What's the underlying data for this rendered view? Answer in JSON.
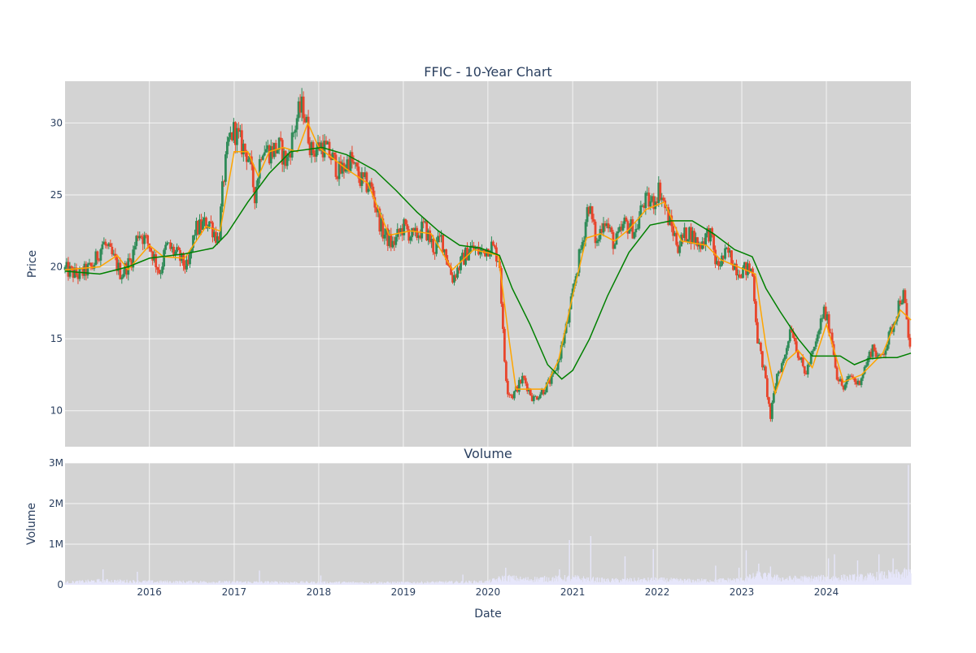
{
  "chart_data": [
    {
      "type": "candlestick",
      "title": "FFIC - 10-Year Chart",
      "xlabel": "",
      "ylabel": "Price",
      "ylim": [
        7.5,
        32.9
      ],
      "yticks": [
        10,
        15,
        20,
        25,
        30
      ],
      "grid": true,
      "background": "#d3d3d3",
      "colors": {
        "increasing": "#2e8b57",
        "decreasing": "#e8452c",
        "ma_short": "#ffa500",
        "ma_long": "#008000"
      },
      "price_path": [
        [
          "2015-01-02",
          19.8
        ],
        [
          "2015-03-01",
          19.4
        ],
        [
          "2015-05-01",
          20.0
        ],
        [
          "2015-06-15",
          21.7
        ],
        [
          "2015-08-01",
          20.5
        ],
        [
          "2015-09-01",
          19.5
        ],
        [
          "2015-10-15",
          20.5
        ],
        [
          "2015-11-15",
          22.5
        ],
        [
          "2016-01-01",
          21.5
        ],
        [
          "2016-02-15",
          19.6
        ],
        [
          "2016-03-15",
          21.5
        ],
        [
          "2016-05-01",
          20.8
        ],
        [
          "2016-06-15",
          19.8
        ],
        [
          "2016-07-15",
          22.5
        ],
        [
          "2016-09-15",
          23.2
        ],
        [
          "2016-10-25",
          21.8
        ],
        [
          "2016-11-15",
          26.0
        ],
        [
          "2016-12-10",
          28.8
        ],
        [
          "2017-01-01",
          29.5
        ],
        [
          "2017-02-01",
          28.5
        ],
        [
          "2017-03-01",
          27.8
        ],
        [
          "2017-04-01",
          25.0
        ],
        [
          "2017-05-01",
          28.5
        ],
        [
          "2017-06-01",
          28.0
        ],
        [
          "2017-07-15",
          28.3
        ],
        [
          "2017-08-15",
          27.2
        ],
        [
          "2017-10-01",
          30.5
        ],
        [
          "2017-10-25",
          31.2
        ],
        [
          "2017-12-01",
          28.0
        ],
        [
          "2018-01-15",
          28.5
        ],
        [
          "2018-03-01",
          27.5
        ],
        [
          "2018-04-01",
          26.5
        ],
        [
          "2018-05-15",
          27.5
        ],
        [
          "2018-07-01",
          26.0
        ],
        [
          "2018-08-15",
          25.5
        ],
        [
          "2018-10-01",
          22.5
        ],
        [
          "2018-11-15",
          21.5
        ],
        [
          "2019-01-01",
          22.8
        ],
        [
          "2019-02-15",
          22.0
        ],
        [
          "2019-04-01",
          22.8
        ],
        [
          "2019-05-15",
          21.2
        ],
        [
          "2019-06-15",
          22.0
        ],
        [
          "2019-08-01",
          19.2
        ],
        [
          "2019-09-15",
          20.5
        ],
        [
          "2019-10-15",
          21.3
        ],
        [
          "2019-12-01",
          21.0
        ],
        [
          "2020-01-15",
          21.5
        ],
        [
          "2020-02-20",
          20.5
        ],
        [
          "2020-03-10",
          14.0
        ],
        [
          "2020-03-25",
          11.5
        ],
        [
          "2020-04-15",
          11.0
        ],
        [
          "2020-06-01",
          12.3
        ],
        [
          "2020-07-15",
          10.8
        ],
        [
          "2020-09-01",
          11.5
        ],
        [
          "2020-10-15",
          12.5
        ],
        [
          "2020-11-15",
          14.5
        ],
        [
          "2020-12-15",
          16.5
        ],
        [
          "2021-01-15",
          19.5
        ],
        [
          "2021-02-15",
          22.0
        ],
        [
          "2021-03-10",
          24.5
        ],
        [
          "2021-04-15",
          21.5
        ],
        [
          "2021-05-15",
          23.5
        ],
        [
          "2021-07-01",
          21.5
        ],
        [
          "2021-08-15",
          23.0
        ],
        [
          "2021-10-01",
          22.5
        ],
        [
          "2021-11-01",
          24.5
        ],
        [
          "2021-12-15",
          24.5
        ],
        [
          "2022-01-10",
          25.5
        ],
        [
          "2022-02-15",
          23.5
        ],
        [
          "2022-04-01",
          21.5
        ],
        [
          "2022-05-15",
          22.5
        ],
        [
          "2022-07-01",
          21.5
        ],
        [
          "2022-08-15",
          22.5
        ],
        [
          "2022-09-15",
          20.0
        ],
        [
          "2022-11-01",
          21.0
        ],
        [
          "2022-12-15",
          19.8
        ],
        [
          "2023-02-15",
          19.8
        ],
        [
          "2023-03-10",
          15.0
        ],
        [
          "2023-04-10",
          12.5
        ],
        [
          "2023-05-05",
          9.5
        ],
        [
          "2023-06-01",
          12.5
        ],
        [
          "2023-07-01",
          13.5
        ],
        [
          "2023-08-01",
          16.0
        ],
        [
          "2023-09-01",
          14.0
        ],
        [
          "2023-10-01",
          12.5
        ],
        [
          "2023-11-15",
          14.5
        ],
        [
          "2023-12-20",
          17.0
        ],
        [
          "2024-01-20",
          15.5
        ],
        [
          "2024-02-15",
          12.5
        ],
        [
          "2024-03-15",
          11.5
        ],
        [
          "2024-04-15",
          12.5
        ],
        [
          "2024-05-15",
          11.8
        ],
        [
          "2024-06-15",
          13.0
        ],
        [
          "2024-07-20",
          14.5
        ],
        [
          "2024-08-15",
          13.5
        ],
        [
          "2024-09-15",
          14.5
        ],
        [
          "2024-10-15",
          16.0
        ],
        [
          "2024-11-15",
          17.8
        ],
        [
          "2024-12-01",
          18.0
        ],
        [
          "2024-12-20",
          15.0
        ],
        [
          "2024-12-31",
          14.3
        ]
      ],
      "ma_short": [
        [
          "2015-01-02",
          19.8
        ],
        [
          "2015-06-01",
          20.0
        ],
        [
          "2015-08-15",
          20.8
        ],
        [
          "2015-10-01",
          19.8
        ],
        [
          "2016-01-01",
          21.5
        ],
        [
          "2016-03-01",
          20.7
        ],
        [
          "2016-06-01",
          20.6
        ],
        [
          "2016-09-01",
          22.8
        ],
        [
          "2016-11-01",
          22.5
        ],
        [
          "2017-01-01",
          28.0
        ],
        [
          "2017-03-01",
          28.0
        ],
        [
          "2017-04-15",
          26.3
        ],
        [
          "2017-06-01",
          28.0
        ],
        [
          "2017-08-01",
          28.3
        ],
        [
          "2017-10-01",
          28.0
        ],
        [
          "2017-11-15",
          30.0
        ],
        [
          "2018-01-01",
          28.3
        ],
        [
          "2018-05-01",
          26.8
        ],
        [
          "2018-08-01",
          25.8
        ],
        [
          "2018-11-01",
          22.2
        ],
        [
          "2019-02-01",
          22.5
        ],
        [
          "2019-05-01",
          22.3
        ],
        [
          "2019-08-01",
          19.8
        ],
        [
          "2019-11-01",
          21.2
        ],
        [
          "2020-02-15",
          20.8
        ],
        [
          "2020-04-01",
          15.0
        ],
        [
          "2020-05-01",
          11.5
        ],
        [
          "2020-09-01",
          11.5
        ],
        [
          "2020-11-01",
          13.5
        ],
        [
          "2021-01-01",
          18.0
        ],
        [
          "2021-03-01",
          22.0
        ],
        [
          "2021-05-01",
          22.3
        ],
        [
          "2021-07-01",
          21.8
        ],
        [
          "2021-09-01",
          22.6
        ],
        [
          "2021-11-15",
          24.0
        ],
        [
          "2022-02-01",
          24.5
        ],
        [
          "2022-04-15",
          21.8
        ],
        [
          "2022-08-01",
          21.5
        ],
        [
          "2022-10-01",
          20.5
        ],
        [
          "2023-01-15",
          19.8
        ],
        [
          "2023-03-01",
          19.5
        ],
        [
          "2023-04-15",
          14.5
        ],
        [
          "2023-05-25",
          11.2
        ],
        [
          "2023-07-15",
          13.5
        ],
        [
          "2023-09-01",
          14.2
        ],
        [
          "2023-11-01",
          13.0
        ],
        [
          "2024-01-01",
          16.0
        ],
        [
          "2024-03-15",
          12.0
        ],
        [
          "2024-06-01",
          12.5
        ],
        [
          "2024-09-01",
          14.0
        ],
        [
          "2024-11-15",
          17.0
        ],
        [
          "2024-12-31",
          16.3
        ]
      ],
      "ma_long": [
        [
          "2015-01-02",
          19.7
        ],
        [
          "2015-06-01",
          19.5
        ],
        [
          "2015-10-01",
          20.0
        ],
        [
          "2016-01-01",
          20.6
        ],
        [
          "2016-06-01",
          20.9
        ],
        [
          "2016-10-01",
          21.3
        ],
        [
          "2016-12-01",
          22.3
        ],
        [
          "2017-03-01",
          24.5
        ],
        [
          "2017-06-01",
          26.5
        ],
        [
          "2017-09-01",
          28.0
        ],
        [
          "2017-12-01",
          28.2
        ],
        [
          "2018-01-15",
          28.3
        ],
        [
          "2018-05-01",
          27.8
        ],
        [
          "2018-09-01",
          26.7
        ],
        [
          "2018-12-01",
          25.3
        ],
        [
          "2019-03-01",
          23.8
        ],
        [
          "2019-06-01",
          22.5
        ],
        [
          "2019-09-01",
          21.5
        ],
        [
          "2019-12-01",
          21.3
        ],
        [
          "2020-02-20",
          20.8
        ],
        [
          "2020-04-15",
          18.5
        ],
        [
          "2020-07-01",
          16.0
        ],
        [
          "2020-09-15",
          13.2
        ],
        [
          "2020-11-15",
          12.2
        ],
        [
          "2021-01-01",
          12.8
        ],
        [
          "2021-03-15",
          15.0
        ],
        [
          "2021-06-01",
          18.0
        ],
        [
          "2021-09-01",
          21.0
        ],
        [
          "2021-12-01",
          22.9
        ],
        [
          "2022-03-01",
          23.2
        ],
        [
          "2022-06-01",
          23.2
        ],
        [
          "2022-09-01",
          22.3
        ],
        [
          "2022-12-01",
          21.2
        ],
        [
          "2023-02-15",
          20.7
        ],
        [
          "2023-04-15",
          18.5
        ],
        [
          "2023-06-15",
          16.9
        ],
        [
          "2023-09-01",
          15.0
        ],
        [
          "2023-11-01",
          13.8
        ],
        [
          "2024-01-01",
          13.8
        ],
        [
          "2024-03-01",
          13.8
        ],
        [
          "2024-05-01",
          13.2
        ],
        [
          "2024-07-01",
          13.6
        ],
        [
          "2024-09-01",
          13.7
        ],
        [
          "2024-11-01",
          13.7
        ],
        [
          "2024-12-31",
          14.0
        ]
      ]
    },
    {
      "type": "bar",
      "title": "Volume",
      "xlabel": "Date",
      "ylabel": "Volume",
      "ylim": [
        0,
        3000000
      ],
      "yticks": [
        0,
        1000000,
        2000000,
        3000000
      ],
      "ytick_labels": [
        "0",
        "1M",
        "2M",
        "3M"
      ],
      "xlim": [
        "2015-01-02",
        "2024-12-31"
      ],
      "xticks": [
        "2016-01-01",
        "2017-01-01",
        "2018-01-01",
        "2019-01-01",
        "2020-01-01",
        "2021-01-01",
        "2022-01-01",
        "2023-01-01",
        "2024-01-01"
      ],
      "xtick_labels": [
        "2016",
        "2017",
        "2018",
        "2019",
        "2020",
        "2021",
        "2022",
        "2023",
        "2024"
      ],
      "grid": true,
      "background": "#d3d3d3",
      "bar_color": "#e6e6fa",
      "baseline_volume": [
        [
          "2015-01-02",
          70000
        ],
        [
          "2015-06-01",
          120000
        ],
        [
          "2016-01-01",
          90000
        ],
        [
          "2017-01-01",
          80000
        ],
        [
          "2018-01-01",
          70000
        ],
        [
          "2019-01-01",
          65000
        ],
        [
          "2020-01-01",
          90000
        ],
        [
          "2020-03-15",
          220000
        ],
        [
          "2020-06-01",
          160000
        ],
        [
          "2021-01-01",
          200000
        ],
        [
          "2021-06-01",
          130000
        ],
        [
          "2022-01-01",
          150000
        ],
        [
          "2022-06-01",
          120000
        ],
        [
          "2023-01-01",
          150000
        ],
        [
          "2023-03-15",
          280000
        ],
        [
          "2023-07-01",
          180000
        ],
        [
          "2024-01-01",
          200000
        ],
        [
          "2024-06-01",
          220000
        ],
        [
          "2024-12-31",
          350000
        ]
      ],
      "spikes": [
        [
          "2015-06-15",
          380000
        ],
        [
          "2015-11-10",
          320000
        ],
        [
          "2017-04-20",
          350000
        ],
        [
          "2018-01-10",
          230000
        ],
        [
          "2019-09-15",
          250000
        ],
        [
          "2020-03-18",
          420000
        ],
        [
          "2020-11-05",
          380000
        ],
        [
          "2020-12-18",
          1100000
        ],
        [
          "2021-03-20",
          1200000
        ],
        [
          "2021-08-15",
          700000
        ],
        [
          "2021-12-15",
          880000
        ],
        [
          "2022-09-10",
          470000
        ],
        [
          "2022-12-20",
          420000
        ],
        [
          "2023-01-20",
          850000
        ],
        [
          "2023-03-15",
          520000
        ],
        [
          "2023-05-05",
          450000
        ],
        [
          "2024-01-10",
          650000
        ],
        [
          "2024-02-05",
          750000
        ],
        [
          "2024-05-15",
          600000
        ],
        [
          "2024-08-15",
          750000
        ],
        [
          "2024-10-15",
          650000
        ],
        [
          "2024-12-20",
          2950000
        ]
      ]
    }
  ]
}
